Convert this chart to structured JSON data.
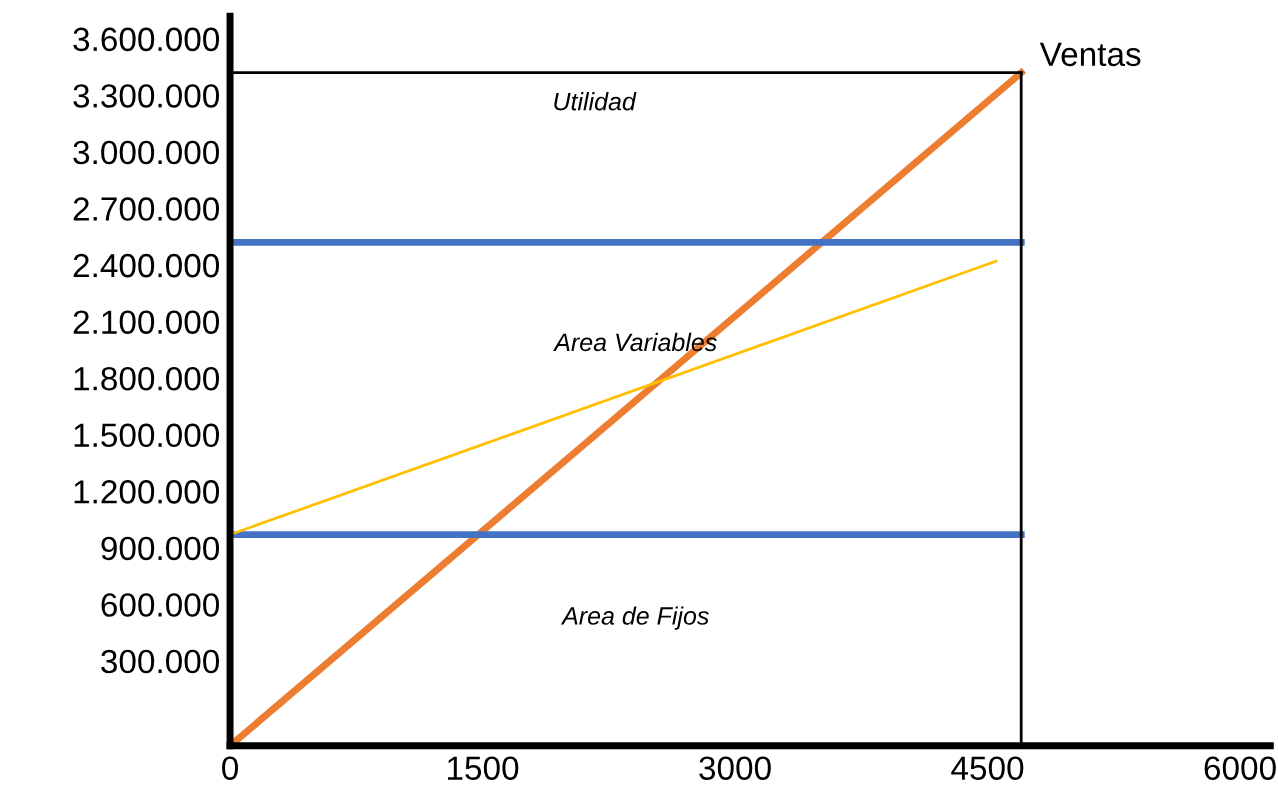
{
  "chart_data": {
    "type": "line",
    "xlim": [
      0,
      6180
    ],
    "ylim": [
      -150000,
      3720000
    ],
    "xticks": [
      0,
      1500,
      3000,
      4500,
      6000
    ],
    "yticks": [
      {
        "value": 300000,
        "label": "300.000"
      },
      {
        "value": 600000,
        "label": "600.000"
      },
      {
        "value": 900000,
        "label": "900.000"
      },
      {
        "value": 1200000,
        "label": "1.200.000"
      },
      {
        "value": 1500000,
        "label": "1.500.000"
      },
      {
        "value": 1800000,
        "label": "1.800.000"
      },
      {
        "value": 2100000,
        "label": "2.100.000"
      },
      {
        "value": 2400000,
        "label": "2.400.000"
      },
      {
        "value": 2700000,
        "label": "2.700.000"
      },
      {
        "value": 3000000,
        "label": "3.000.000"
      },
      {
        "value": 3300000,
        "label": "3.300.000"
      },
      {
        "value": 3600000,
        "label": "3.600.000"
      }
    ],
    "series": [
      {
        "color": "#ed7d31",
        "x": [
          0,
          4700
        ],
        "values": [
          -150000,
          3420000
        ]
      },
      {
        "color": "#4472c4",
        "x": [
          0,
          4700
        ],
        "values": [
          970000,
          970000
        ]
      },
      {
        "color": "#4472c4",
        "x": [
          0,
          4700
        ],
        "values": [
          2520000,
          2520000
        ]
      },
      {
        "color": "#ffc000",
        "x": [
          0,
          4550
        ],
        "values": [
          970000,
          2420000
        ]
      }
    ],
    "ref_lines": [
      {
        "axis": "y",
        "value": 3420000,
        "color": "#000000"
      },
      {
        "axis": "x",
        "value": 4700,
        "color": "#000000"
      }
    ],
    "annotations": [
      {
        "text": "Ventas",
        "x": 4700,
        "y": 3420000
      },
      "Utilidad",
      "Area Variables",
      "Area de Fijos"
    ],
    "grid": false,
    "legend": false
  }
}
